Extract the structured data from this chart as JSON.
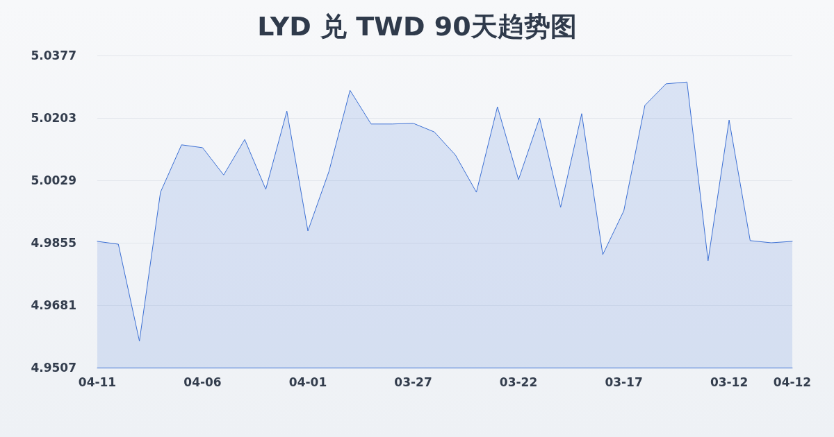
{
  "chart_data": {
    "type": "area",
    "title": "LYD 兑 TWD 90天趋势图",
    "categories": [
      "04-11",
      null,
      null,
      null,
      null,
      "04-06",
      null,
      null,
      null,
      null,
      "04-01",
      null,
      null,
      null,
      null,
      "03-27",
      null,
      null,
      null,
      null,
      "03-22",
      null,
      null,
      null,
      null,
      "03-17",
      null,
      null,
      null,
      null,
      "03-12",
      null,
      null,
      "04-12"
    ],
    "series": [
      {
        "color": "#3b6fd4",
        "values": [
          4.9859,
          4.9851,
          4.9581,
          4.9996,
          5.0128,
          5.012,
          5.0044,
          5.0143,
          5.0004,
          5.0222,
          4.9888,
          5.0054,
          5.028,
          5.0186,
          5.0186,
          5.0188,
          5.0164,
          5.01,
          4.9996,
          5.0234,
          5.0031,
          5.0203,
          4.9954,
          5.0215,
          4.9822,
          4.9944,
          5.0238,
          5.0298,
          5.0303,
          4.9805,
          5.0197,
          4.9861,
          4.9855,
          4.9859
        ]
      }
    ],
    "ylim": [
      4.9507,
      5.0377
    ],
    "yticks": [
      4.9507,
      4.9681,
      4.9855,
      5.0029,
      5.0203,
      5.0377
    ],
    "grid": "y",
    "marker": "none",
    "line_style": "solid"
  }
}
